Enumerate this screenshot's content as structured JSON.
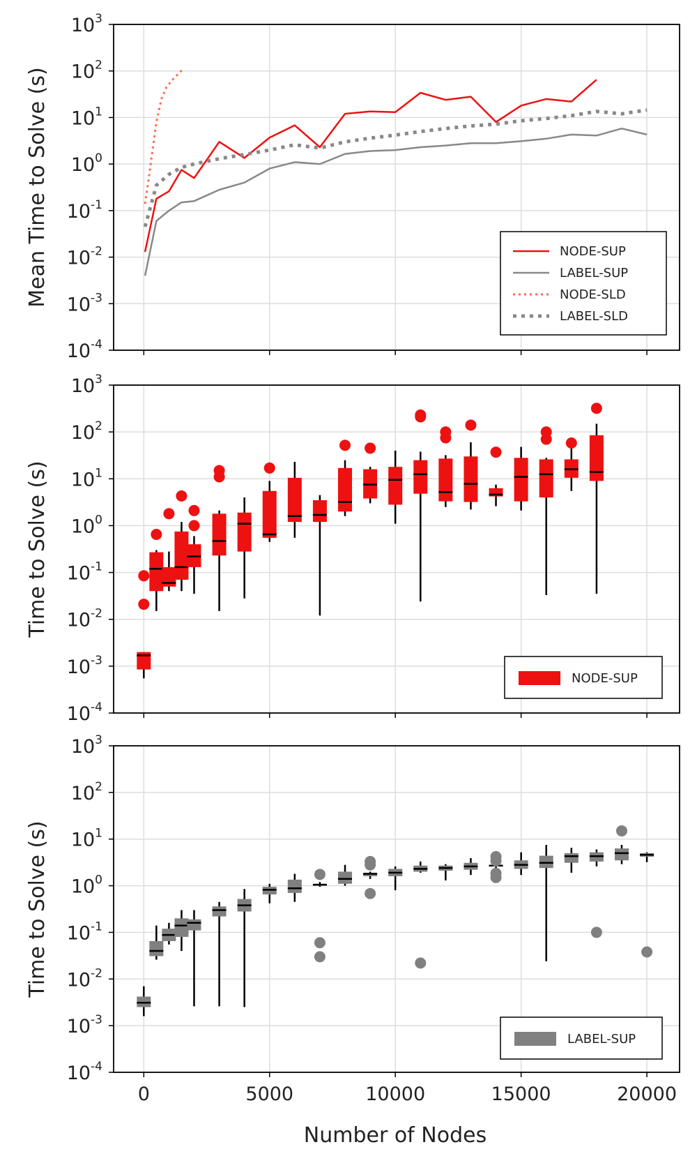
{
  "figure": {
    "xlabel": "Number of Nodes",
    "x_ticks": [
      "0",
      "5000",
      "10000",
      "15000",
      "20000"
    ]
  },
  "chart_data": [
    {
      "type": "line",
      "ylabel": "Mean Time to Solve (s)",
      "yscale": "log",
      "ylim": [
        0.0001,
        1000
      ],
      "xlim": [
        -1200,
        21300
      ],
      "y_ticks": [
        {
          "base": "10",
          "exp": "-4"
        },
        {
          "base": "10",
          "exp": "-3"
        },
        {
          "base": "10",
          "exp": "-2"
        },
        {
          "base": "10",
          "exp": "-1"
        },
        {
          "base": "10",
          "exp": "0"
        },
        {
          "base": "10",
          "exp": "1"
        },
        {
          "base": "10",
          "exp": "2"
        },
        {
          "base": "10",
          "exp": "3"
        }
      ],
      "legend_position": "lower-right",
      "series": [
        {
          "name": "NODE-SUP",
          "color": "#ee1111",
          "style": "solid",
          "x": [
            50,
            500,
            1000,
            1500,
            2000,
            3000,
            4000,
            5000,
            6000,
            7000,
            8000,
            9000,
            10000,
            11000,
            12000,
            13000,
            14000,
            15000,
            16000,
            17000,
            18000
          ],
          "y": [
            0.013,
            0.18,
            0.26,
            0.75,
            0.5,
            3.0,
            1.35,
            3.7,
            6.8,
            2.3,
            12,
            13.5,
            13,
            34,
            24,
            28,
            8.0,
            18,
            25,
            22,
            65
          ]
        },
        {
          "name": "LABEL-SUP",
          "color": "#888888",
          "style": "solid",
          "x": [
            50,
            500,
            1000,
            1500,
            2000,
            3000,
            4000,
            5000,
            6000,
            7000,
            8000,
            9000,
            10000,
            11000,
            12000,
            13000,
            14000,
            15000,
            16000,
            17000,
            18000,
            19000,
            20000
          ],
          "y": [
            0.004,
            0.06,
            0.1,
            0.15,
            0.16,
            0.28,
            0.4,
            0.8,
            1.1,
            1.0,
            1.65,
            1.9,
            2.0,
            2.3,
            2.5,
            2.8,
            2.8,
            3.1,
            3.5,
            4.3,
            4.1,
            5.8,
            4.3
          ]
        },
        {
          "name": "NODE-SLD",
          "color": "#ff6a4a",
          "style": "dotted",
          "x": [
            50,
            200,
            350,
            500,
            700,
            900,
            1200,
            1600
          ],
          "y": [
            0.14,
            0.5,
            2.0,
            8.0,
            25,
            45,
            70,
            115
          ]
        },
        {
          "name": "LABEL-SLD",
          "color": "#888888",
          "style": "dotted-thick",
          "x": [
            50,
            500,
            1000,
            1500,
            2000,
            3000,
            4000,
            5000,
            6000,
            7000,
            8000,
            9000,
            10000,
            11000,
            12000,
            13000,
            14000,
            15000,
            16000,
            17000,
            18000,
            19000,
            20000
          ],
          "y": [
            0.045,
            0.35,
            0.6,
            0.85,
            1.0,
            1.3,
            1.6,
            2.0,
            2.6,
            2.2,
            3.0,
            3.6,
            4.2,
            5.0,
            5.8,
            6.6,
            7.2,
            8.5,
            9.5,
            11,
            13.5,
            12,
            14.5
          ]
        }
      ]
    },
    {
      "type": "box",
      "ylabel": "Time to Solve (s)",
      "yscale": "log",
      "ylim": [
        0.0001,
        1000
      ],
      "xlim": [
        -1200,
        21300
      ],
      "y_ticks": [
        {
          "base": "10",
          "exp": "-4"
        },
        {
          "base": "10",
          "exp": "-3"
        },
        {
          "base": "10",
          "exp": "-2"
        },
        {
          "base": "10",
          "exp": "-1"
        },
        {
          "base": "10",
          "exp": "0"
        },
        {
          "base": "10",
          "exp": "1"
        },
        {
          "base": "10",
          "exp": "2"
        },
        {
          "base": "10",
          "exp": "3"
        }
      ],
      "legend_position": "lower-right",
      "series_name": "NODE-SUP",
      "color": "#ee1111",
      "boxes": [
        {
          "x": 0,
          "low": 0.00055,
          "q1": 0.00085,
          "median": 0.0017,
          "q3": 0.002,
          "high": 0.002,
          "outliers": [
            0.021,
            0.085
          ]
        },
        {
          "x": 500,
          "low": 0.015,
          "q1": 0.04,
          "median": 0.12,
          "q3": 0.27,
          "high": 0.3,
          "outliers": [
            0.65
          ]
        },
        {
          "x": 1000,
          "low": 0.04,
          "q1": 0.05,
          "median": 0.06,
          "q3": 0.13,
          "high": 0.28,
          "outliers": [
            1.8
          ]
        },
        {
          "x": 1500,
          "low": 0.04,
          "q1": 0.07,
          "median": 0.13,
          "q3": 0.75,
          "high": 1.2,
          "outliers": [
            4.3
          ]
        },
        {
          "x": 2000,
          "low": 0.035,
          "q1": 0.13,
          "median": 0.22,
          "q3": 0.4,
          "high": 0.6,
          "outliers": [
            1.0,
            2.1
          ]
        },
        {
          "x": 3000,
          "low": 0.015,
          "q1": 0.23,
          "median": 0.47,
          "q3": 1.8,
          "high": 2.1,
          "outliers": [
            11,
            15
          ]
        },
        {
          "x": 4000,
          "low": 0.028,
          "q1": 0.28,
          "median": 1.1,
          "q3": 1.9,
          "high": 4.0,
          "outliers": []
        },
        {
          "x": 5000,
          "low": 0.45,
          "q1": 0.55,
          "median": 0.65,
          "q3": 5.5,
          "high": 9.0,
          "outliers": [
            17
          ]
        },
        {
          "x": 6000,
          "low": 0.55,
          "q1": 1.2,
          "median": 1.6,
          "q3": 10.5,
          "high": 23,
          "outliers": []
        },
        {
          "x": 7000,
          "low": 0.012,
          "q1": 1.2,
          "median": 1.7,
          "q3": 3.5,
          "high": 4.5,
          "outliers": []
        },
        {
          "x": 8000,
          "low": 1.6,
          "q1": 2.0,
          "median": 3.2,
          "q3": 17,
          "high": 25,
          "outliers": [
            52
          ]
        },
        {
          "x": 9000,
          "low": 3.0,
          "q1": 3.8,
          "median": 7.5,
          "q3": 16,
          "high": 18,
          "outliers": [
            45
          ]
        },
        {
          "x": 10000,
          "low": 1.1,
          "q1": 2.8,
          "median": 9.5,
          "q3": 18,
          "high": 40,
          "outliers": []
        },
        {
          "x": 11000,
          "low": 0.024,
          "q1": 4.8,
          "median": 12.5,
          "q3": 25,
          "high": 38,
          "outliers": [
            210,
            230
          ]
        },
        {
          "x": 12000,
          "low": 2.5,
          "q1": 3.3,
          "median": 5.2,
          "q3": 27,
          "high": 32,
          "outliers": [
            75,
            100
          ]
        },
        {
          "x": 13000,
          "low": 2.2,
          "q1": 3.2,
          "median": 7.8,
          "q3": 30,
          "high": 60,
          "outliers": [
            140
          ]
        },
        {
          "x": 14000,
          "low": 2.6,
          "q1": 4.2,
          "median": 4.6,
          "q3": 6.3,
          "high": 7.5,
          "outliers": [
            37
          ]
        },
        {
          "x": 15000,
          "low": 2.1,
          "q1": 3.3,
          "median": 11,
          "q3": 28,
          "high": 48,
          "outliers": []
        },
        {
          "x": 16000,
          "low": 0.033,
          "q1": 4.0,
          "median": 12.5,
          "q3": 26,
          "high": 28,
          "outliers": [
            70,
            100
          ]
        },
        {
          "x": 17000,
          "low": 5.5,
          "q1": 10.5,
          "median": 16,
          "q3": 26,
          "high": 45,
          "outliers": [
            58
          ]
        },
        {
          "x": 18000,
          "low": 0.035,
          "q1": 9.0,
          "median": 14,
          "q3": 85,
          "high": 150,
          "outliers": [
            320
          ]
        }
      ]
    },
    {
      "type": "box",
      "ylabel": "Time to Solve (s)",
      "yscale": "log",
      "ylim": [
        0.0001,
        1000
      ],
      "xlim": [
        -1200,
        21300
      ],
      "y_ticks": [
        {
          "base": "10",
          "exp": "-4"
        },
        {
          "base": "10",
          "exp": "-3"
        },
        {
          "base": "10",
          "exp": "-2"
        },
        {
          "base": "10",
          "exp": "-1"
        },
        {
          "base": "10",
          "exp": "0"
        },
        {
          "base": "10",
          "exp": "1"
        },
        {
          "base": "10",
          "exp": "2"
        },
        {
          "base": "10",
          "exp": "3"
        }
      ],
      "legend_position": "lower-right",
      "series_name": "LABEL-SUP",
      "color": "#808080",
      "boxes": [
        {
          "x": 0,
          "low": 0.0016,
          "q1": 0.0025,
          "median": 0.0031,
          "q3": 0.0042,
          "high": 0.007,
          "outliers": []
        },
        {
          "x": 500,
          "low": 0.026,
          "q1": 0.031,
          "median": 0.04,
          "q3": 0.065,
          "high": 0.14,
          "outliers": []
        },
        {
          "x": 1000,
          "low": 0.055,
          "q1": 0.065,
          "median": 0.088,
          "q3": 0.12,
          "high": 0.16,
          "outliers": []
        },
        {
          "x": 1500,
          "low": 0.04,
          "q1": 0.08,
          "median": 0.14,
          "q3": 0.2,
          "high": 0.3,
          "outliers": []
        },
        {
          "x": 2000,
          "low": 0.0026,
          "q1": 0.11,
          "median": 0.16,
          "q3": 0.19,
          "high": 0.3,
          "outliers": []
        },
        {
          "x": 3000,
          "low": 0.0026,
          "q1": 0.22,
          "median": 0.3,
          "q3": 0.36,
          "high": 0.45,
          "outliers": []
        },
        {
          "x": 4000,
          "low": 0.0025,
          "q1": 0.28,
          "median": 0.38,
          "q3": 0.52,
          "high": 0.85,
          "outliers": []
        },
        {
          "x": 5000,
          "low": 0.42,
          "q1": 0.65,
          "median": 0.82,
          "q3": 0.95,
          "high": 1.1,
          "outliers": []
        },
        {
          "x": 6000,
          "low": 0.45,
          "q1": 0.7,
          "median": 0.88,
          "q3": 1.35,
          "high": 1.8,
          "outliers": []
        },
        {
          "x": 7000,
          "low": 0.95,
          "q1": 1.0,
          "median": 1.05,
          "q3": 1.1,
          "high": 1.2,
          "outliers": [
            0.03,
            0.06,
            1.75
          ]
        },
        {
          "x": 8000,
          "low": 1.0,
          "q1": 1.1,
          "median": 1.4,
          "q3": 2.0,
          "high": 2.8,
          "outliers": []
        },
        {
          "x": 9000,
          "low": 1.4,
          "q1": 1.6,
          "median": 1.8,
          "q3": 1.9,
          "high": 2.0,
          "outliers": [
            0.68,
            2.8,
            3.3
          ]
        },
        {
          "x": 10000,
          "low": 0.8,
          "q1": 1.6,
          "median": 1.9,
          "q3": 2.3,
          "high": 2.6,
          "outliers": []
        },
        {
          "x": 11000,
          "low": 1.9,
          "q1": 2.0,
          "median": 2.3,
          "q3": 2.7,
          "high": 3.3,
          "outliers": [
            0.022
          ]
        },
        {
          "x": 12000,
          "low": 1.3,
          "q1": 2.1,
          "median": 2.4,
          "q3": 2.7,
          "high": 2.9,
          "outliers": []
        },
        {
          "x": 13000,
          "low": 1.7,
          "q1": 2.2,
          "median": 2.6,
          "q3": 3.1,
          "high": 3.9,
          "outliers": []
        },
        {
          "x": 14000,
          "low": 2.3,
          "q1": 2.6,
          "median": 2.7,
          "q3": 2.8,
          "high": 3.0,
          "outliers": [
            1.5,
            1.85,
            3.4,
            4.2
          ]
        },
        {
          "x": 15000,
          "low": 1.7,
          "q1": 2.3,
          "median": 2.8,
          "q3": 3.5,
          "high": 5.2,
          "outliers": []
        },
        {
          "x": 16000,
          "low": 0.024,
          "q1": 2.4,
          "median": 3.1,
          "q3": 4.4,
          "high": 7.5,
          "outliers": []
        },
        {
          "x": 17000,
          "low": 1.9,
          "q1": 3.1,
          "median": 4.3,
          "q3": 5.0,
          "high": 6.5,
          "outliers": []
        },
        {
          "x": 18000,
          "low": 2.6,
          "q1": 3.3,
          "median": 4.3,
          "q3": 5.2,
          "high": 6.0,
          "outliers": [
            0.1
          ]
        },
        {
          "x": 19000,
          "low": 2.9,
          "q1": 3.5,
          "median": 5.0,
          "q3": 6.3,
          "high": 7.5,
          "outliers": [
            15
          ]
        },
        {
          "x": 20000,
          "low": 3.2,
          "q1": 4.2,
          "median": 4.6,
          "q3": 5.0,
          "high": 5.2,
          "outliers": [
            0.038
          ]
        }
      ]
    }
  ]
}
